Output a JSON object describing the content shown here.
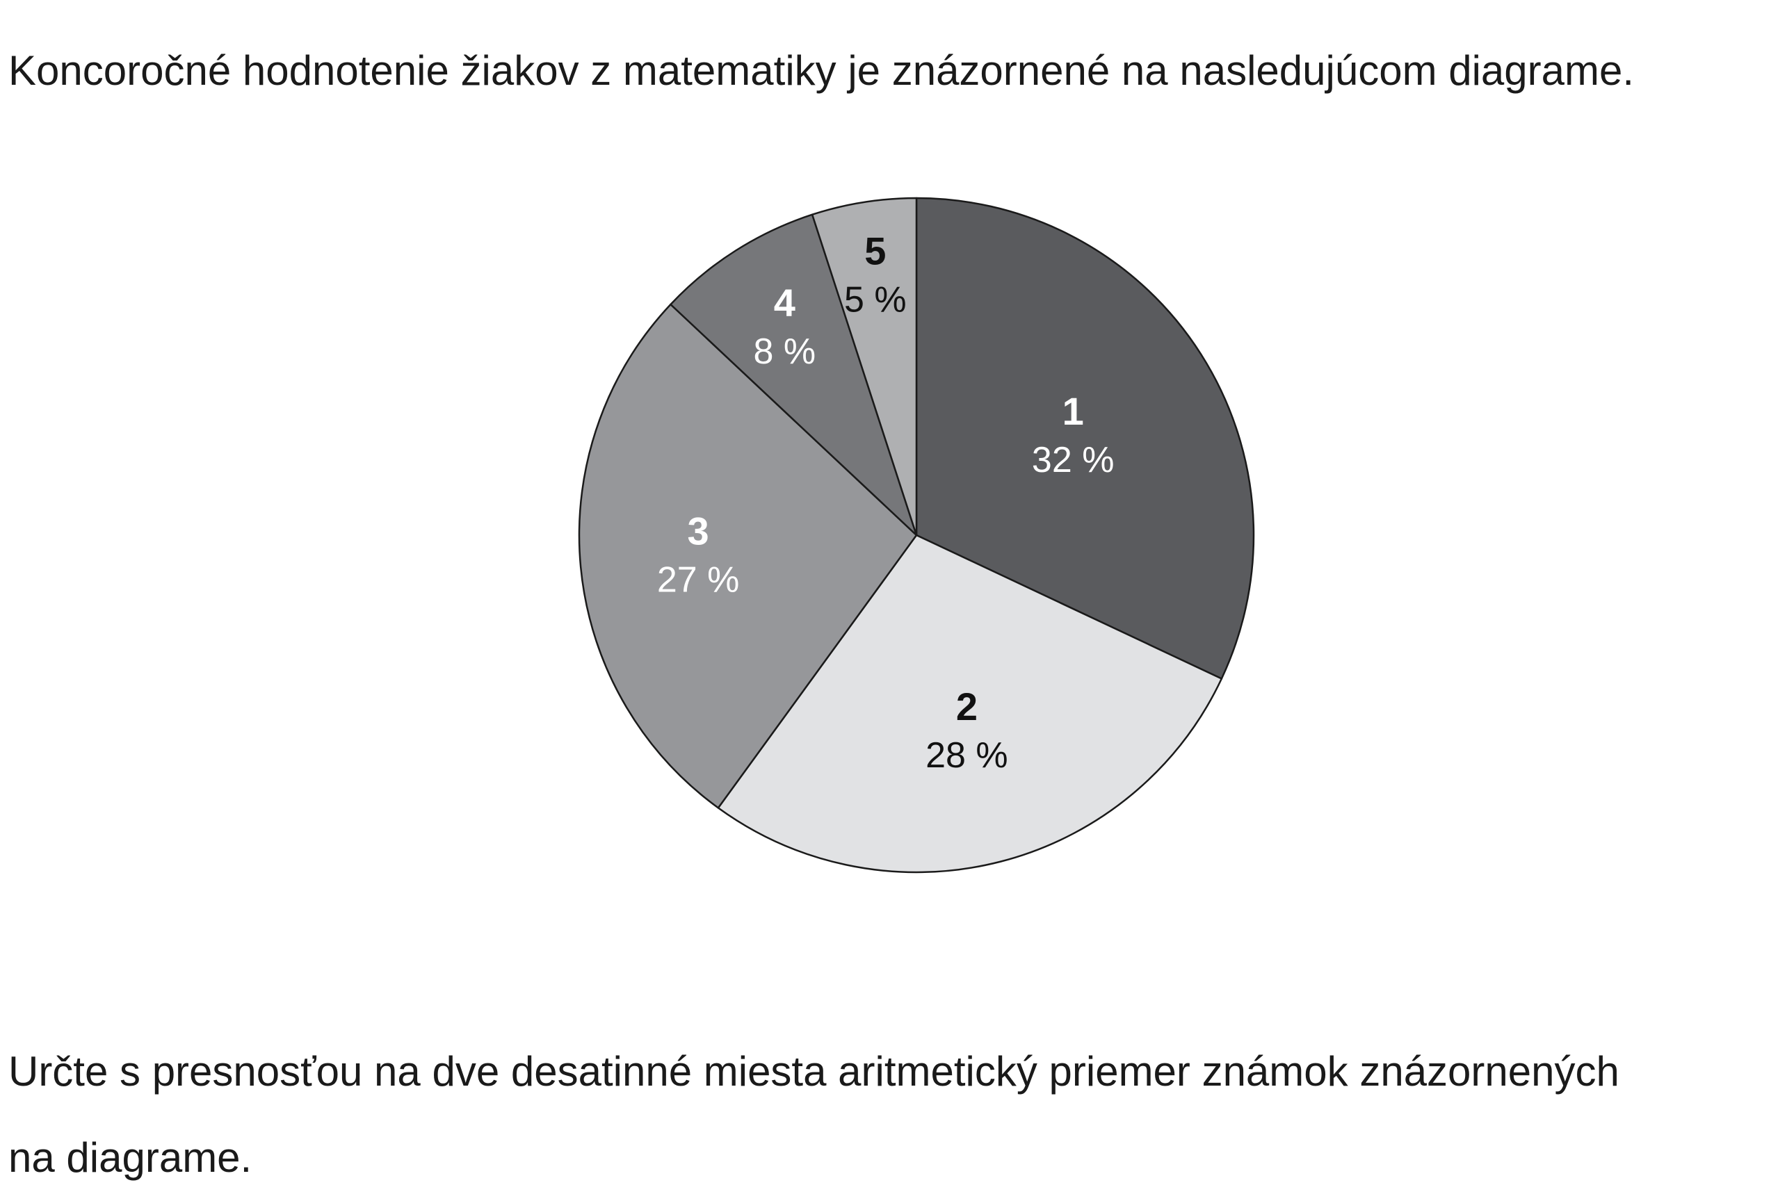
{
  "intro_text": "Koncoročné hodnotenie žiakov z matematiky je znázornené na nasledujúcom diagrame.",
  "question": {
    "line1": "Určte s presnosťou na dve desatinné miesta aritmetický priemer známok znázornených",
    "line2": "na diagrame."
  },
  "chart_data": {
    "type": "pie",
    "categories": [
      "1",
      "2",
      "3",
      "4",
      "5"
    ],
    "values": [
      32,
      28,
      27,
      8,
      5
    ],
    "value_labels": [
      "32 %",
      "28 %",
      "27 %",
      "8 %",
      "5 %"
    ],
    "colors": [
      "#5a5b5e",
      "#e1e2e4",
      "#96979a",
      "#76777a",
      "#afb0b2"
    ],
    "label_colors": [
      "#ffffff",
      "#111111",
      "#ffffff",
      "#ffffff",
      "#111111"
    ],
    "title": "",
    "legend": "none",
    "direction": "clockwise",
    "start": "top"
  }
}
